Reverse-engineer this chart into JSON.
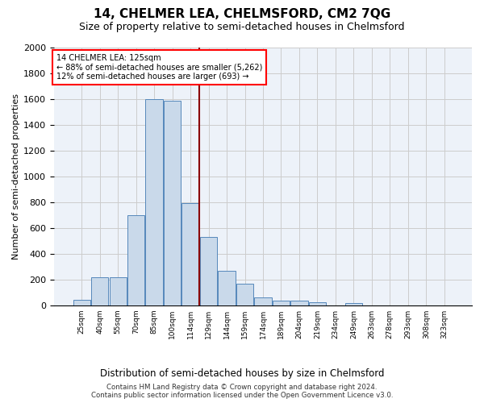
{
  "title": "14, CHELMER LEA, CHELMSFORD, CM2 7QG",
  "subtitle": "Size of property relative to semi-detached houses in Chelmsford",
  "xlabel": "Distribution of semi-detached houses by size in Chelmsford",
  "ylabel": "Number of semi-detached properties",
  "footer_line1": "Contains HM Land Registry data © Crown copyright and database right 2024.",
  "footer_line2": "Contains public sector information licensed under the Open Government Licence v3.0.",
  "bar_labels": [
    "25sqm",
    "40sqm",
    "55sqm",
    "70sqm",
    "85sqm",
    "100sqm",
    "114sqm",
    "129sqm",
    "144sqm",
    "159sqm",
    "174sqm",
    "189sqm",
    "204sqm",
    "219sqm",
    "234sqm",
    "249sqm",
    "263sqm",
    "278sqm",
    "293sqm",
    "308sqm",
    "323sqm"
  ],
  "bar_values": [
    45,
    215,
    215,
    700,
    1600,
    1590,
    790,
    530,
    270,
    165,
    60,
    38,
    35,
    22,
    0,
    20,
    0,
    0,
    0,
    0,
    0
  ],
  "bar_color": "#c9d9ea",
  "bar_edge_color": "#5588bb",
  "vline_color": "#8b0000",
  "annotation_label": "14 CHELMER LEA: 125sqm",
  "annotation_smaller": "← 88% of semi-detached houses are smaller (5,262)",
  "annotation_larger": "12% of semi-detached houses are larger (693) →",
  "ylim": [
    0,
    2000
  ],
  "yticks": [
    0,
    200,
    400,
    600,
    800,
    1000,
    1200,
    1400,
    1600,
    1800,
    2000
  ],
  "grid_color": "#cccccc",
  "bg_color": "#edf2f9",
  "title_fontsize": 11,
  "subtitle_fontsize": 9
}
